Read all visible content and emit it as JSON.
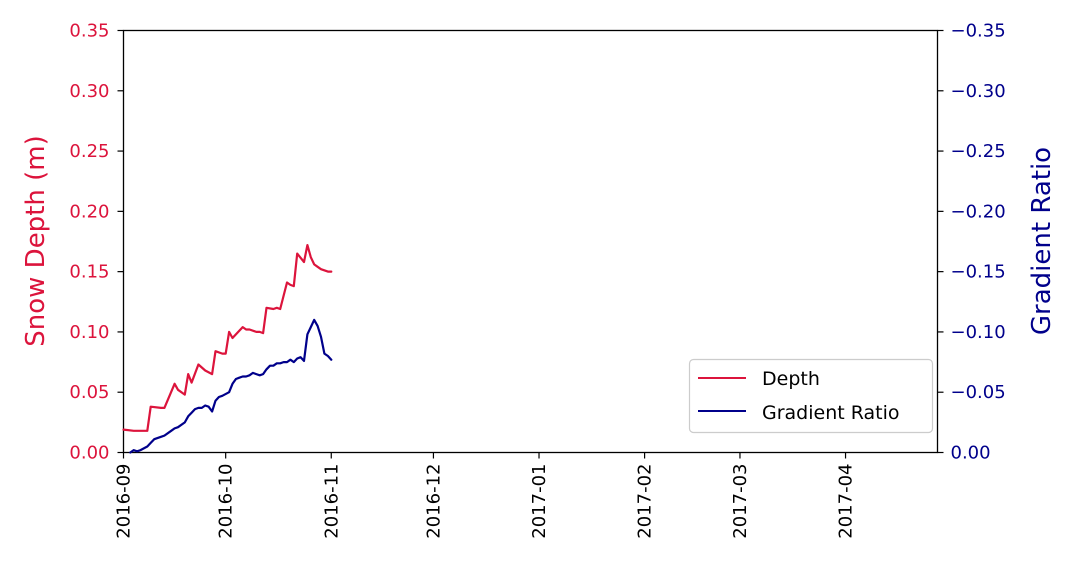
{
  "chart_data": {
    "type": "line",
    "xlabel": "",
    "ylabel_left": "Snow Depth (m)",
    "ylabel_right": "Gradient Ratio",
    "x_tick_labels": [
      "2016-09",
      "2016-10",
      "2016-11",
      "2016-12",
      "2017-01",
      "2017-02",
      "2017-03",
      "2017-04"
    ],
    "x_tick_dates": [
      "2016-09-01",
      "2016-10-01",
      "2016-11-01",
      "2016-12-01",
      "2017-01-01",
      "2017-02-01",
      "2017-03-01",
      "2017-04-01"
    ],
    "xlim": [
      "2016-09-01",
      "2017-04-28"
    ],
    "y_left": {
      "lim": [
        0,
        0.35
      ],
      "ticks": [
        0.0,
        0.05,
        0.1,
        0.15,
        0.2,
        0.25,
        0.3,
        0.35
      ],
      "tick_labels": [
        "0.00",
        "0.05",
        "0.10",
        "0.15",
        "0.20",
        "0.25",
        "0.30",
        "0.35"
      ],
      "color": "#dc143c"
    },
    "y_right": {
      "lim": [
        0,
        -0.35
      ],
      "inverted": true,
      "ticks": [
        0.0,
        -0.05,
        -0.1,
        -0.15,
        -0.2,
        -0.25,
        -0.3,
        -0.35
      ],
      "tick_labels": [
        "0.00",
        "−0.05",
        "−0.10",
        "−0.15",
        "−0.20",
        "−0.25",
        "−0.30",
        "−0.35"
      ],
      "color": "#00008b"
    },
    "grid": false,
    "legend": {
      "placement": "lower-right",
      "entries": [
        "Depth",
        "Gradient Ratio"
      ]
    },
    "series": [
      {
        "name": "Depth",
        "axis": "left",
        "color": "#dc143c",
        "x": [
          "2016-09-01",
          "2016-09-04",
          "2016-09-08",
          "2016-09-09",
          "2016-09-12",
          "2016-09-13",
          "2016-09-16",
          "2016-09-17",
          "2016-09-19",
          "2016-09-20",
          "2016-09-21",
          "2016-09-23",
          "2016-09-25",
          "2016-09-27",
          "2016-09-28",
          "2016-09-30",
          "2016-10-01",
          "2016-10-02",
          "2016-10-03",
          "2016-10-06",
          "2016-10-07",
          "2016-10-08",
          "2016-10-10",
          "2016-10-11",
          "2016-10-12",
          "2016-10-13",
          "2016-10-15",
          "2016-10-16",
          "2016-10-17",
          "2016-10-19",
          "2016-10-20",
          "2016-10-21",
          "2016-10-22",
          "2016-10-24",
          "2016-10-25",
          "2016-10-26",
          "2016-10-27",
          "2016-10-28",
          "2016-10-29",
          "2016-10-31",
          "2016-11-01"
        ],
        "values": [
          0.019,
          0.018,
          0.018,
          0.038,
          0.037,
          0.037,
          0.057,
          0.052,
          0.048,
          0.065,
          0.058,
          0.073,
          0.068,
          0.065,
          0.084,
          0.082,
          0.082,
          0.1,
          0.095,
          0.104,
          0.102,
          0.102,
          0.1,
          0.1,
          0.099,
          0.12,
          0.119,
          0.12,
          0.119,
          0.141,
          0.139,
          0.138,
          0.165,
          0.158,
          0.172,
          0.162,
          0.156,
          0.154,
          0.152,
          0.15,
          0.15
        ]
      },
      {
        "name": "Gradient Ratio",
        "axis": "right",
        "color": "#00008b",
        "x": [
          "2016-09-03",
          "2016-09-04",
          "2016-09-05",
          "2016-09-06",
          "2016-09-08",
          "2016-09-09",
          "2016-09-10",
          "2016-09-12",
          "2016-09-13",
          "2016-09-15",
          "2016-09-16",
          "2016-09-17",
          "2016-09-19",
          "2016-09-20",
          "2016-09-21",
          "2016-09-22",
          "2016-09-23",
          "2016-09-24",
          "2016-09-25",
          "2016-09-26",
          "2016-09-27",
          "2016-09-28",
          "2016-09-29",
          "2016-09-30",
          "2016-10-02",
          "2016-10-03",
          "2016-10-04",
          "2016-10-05",
          "2016-10-06",
          "2016-10-07",
          "2016-10-08",
          "2016-10-09",
          "2016-10-10",
          "2016-10-11",
          "2016-10-12",
          "2016-10-13",
          "2016-10-14",
          "2016-10-15",
          "2016-10-16",
          "2016-10-17",
          "2016-10-18",
          "2016-10-19",
          "2016-10-20",
          "2016-10-21",
          "2016-10-22",
          "2016-10-23",
          "2016-10-24",
          "2016-10-25",
          "2016-10-26",
          "2016-10-27",
          "2016-10-28",
          "2016-10-29",
          "2016-10-30",
          "2016-10-31",
          "2016-11-01"
        ],
        "values": [
          0.0,
          -0.002,
          -0.001,
          -0.002,
          -0.005,
          -0.008,
          -0.011,
          -0.013,
          -0.014,
          -0.018,
          -0.02,
          -0.021,
          -0.025,
          -0.03,
          -0.033,
          -0.036,
          -0.037,
          -0.037,
          -0.039,
          -0.038,
          -0.034,
          -0.043,
          -0.046,
          -0.047,
          -0.05,
          -0.057,
          -0.061,
          -0.062,
          -0.063,
          -0.063,
          -0.064,
          -0.066,
          -0.065,
          -0.064,
          -0.065,
          -0.069,
          -0.072,
          -0.072,
          -0.074,
          -0.074,
          -0.075,
          -0.075,
          -0.077,
          -0.075,
          -0.078,
          -0.079,
          -0.076,
          -0.098,
          -0.104,
          -0.11,
          -0.105,
          -0.096,
          -0.082,
          -0.08,
          -0.077
        ]
      }
    ]
  }
}
